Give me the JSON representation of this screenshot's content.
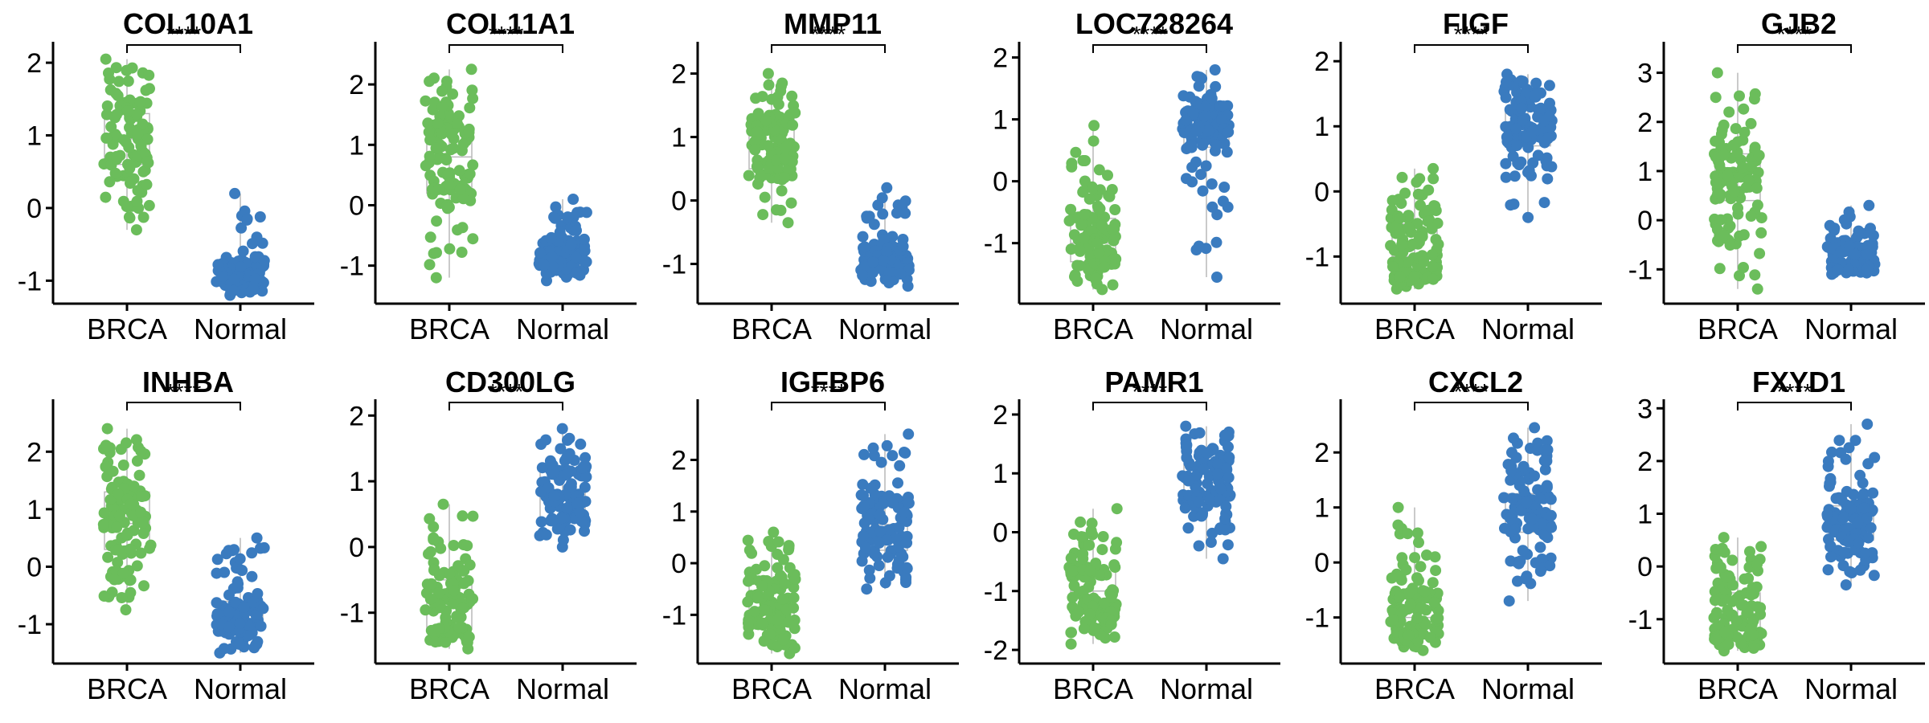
{
  "colors": {
    "BRCA": "#6bbd5b",
    "Normal": "#3a7bbf"
  },
  "chart_data": [
    {
      "type": "scatter",
      "title": "COL10A1",
      "categories": [
        "BRCA",
        "Normal"
      ],
      "annotation": "****",
      "ylim": [
        -1.25,
        2.2
      ],
      "yticks": [
        -1,
        0,
        1,
        2
      ],
      "series": [
        {
          "category": "BRCA",
          "median": 0.95,
          "q1": 0.6,
          "q3": 1.3,
          "min": -0.3,
          "max": 2.05,
          "n": 110
        },
        {
          "category": "Normal",
          "median": -0.9,
          "q1": -1.0,
          "q3": -0.75,
          "min": -1.2,
          "max": 0.2,
          "n": 110
        }
      ]
    },
    {
      "type": "scatter",
      "title": "COL11A1",
      "categories": [
        "BRCA",
        "Normal"
      ],
      "annotation": "****",
      "ylim": [
        -1.55,
        2.6
      ],
      "yticks": [
        -1,
        0,
        1,
        2
      ],
      "series": [
        {
          "category": "BRCA",
          "median": 0.8,
          "q1": 0.2,
          "q3": 1.3,
          "min": -1.2,
          "max": 2.25,
          "n": 110
        },
        {
          "category": "Normal",
          "median": -0.85,
          "q1": -1.0,
          "q3": -0.65,
          "min": -1.25,
          "max": 0.1,
          "n": 110
        }
      ]
    },
    {
      "type": "scatter",
      "title": "MMP11",
      "categories": [
        "BRCA",
        "Normal"
      ],
      "annotation": "****",
      "ylim": [
        -1.55,
        2.4
      ],
      "yticks": [
        -1,
        0,
        1,
        2
      ],
      "series": [
        {
          "category": "BRCA",
          "median": 0.9,
          "q1": 0.5,
          "q3": 1.3,
          "min": -0.35,
          "max": 2.0,
          "n": 110
        },
        {
          "category": "Normal",
          "median": -0.9,
          "q1": -1.05,
          "q3": -0.75,
          "min": -1.35,
          "max": 0.2,
          "n": 110
        }
      ]
    },
    {
      "type": "scatter",
      "title": "LOC728264",
      "categories": [
        "BRCA",
        "Normal"
      ],
      "annotation": "****",
      "ylim": [
        -1.9,
        2.15
      ],
      "yticks": [
        -1,
        0,
        1,
        2
      ],
      "series": [
        {
          "category": "BRCA",
          "median": -1.0,
          "q1": -1.3,
          "q3": -0.6,
          "min": -1.75,
          "max": 0.9,
          "n": 110
        },
        {
          "category": "Normal",
          "median": 0.9,
          "q1": 0.55,
          "q3": 1.2,
          "min": -1.55,
          "max": 1.8,
          "n": 110
        }
      ]
    },
    {
      "type": "scatter",
      "title": "FIGF",
      "categories": [
        "BRCA",
        "Normal"
      ],
      "annotation": "****",
      "ylim": [
        -1.65,
        2.2
      ],
      "yticks": [
        -1,
        0,
        1,
        2
      ],
      "series": [
        {
          "category": "BRCA",
          "median": -1.0,
          "q1": -1.3,
          "q3": -0.5,
          "min": -1.5,
          "max": 0.35,
          "n": 110
        },
        {
          "category": "Normal",
          "median": 1.0,
          "q1": 0.7,
          "q3": 1.25,
          "min": -0.4,
          "max": 1.8,
          "n": 110
        }
      ]
    },
    {
      "type": "scatter",
      "title": "GJB2",
      "categories": [
        "BRCA",
        "Normal"
      ],
      "annotation": "****",
      "ylim": [
        -1.6,
        3.5
      ],
      "yticks": [
        -1,
        0,
        1,
        2,
        3
      ],
      "series": [
        {
          "category": "BRCA",
          "median": 0.95,
          "q1": 0.4,
          "q3": 1.35,
          "min": -1.4,
          "max": 3.0,
          "n": 110
        },
        {
          "category": "Normal",
          "median": -0.8,
          "q1": -1.0,
          "q3": -0.55,
          "min": -1.1,
          "max": 0.3,
          "n": 110
        }
      ]
    },
    {
      "type": "scatter",
      "title": "INHBA",
      "categories": [
        "BRCA",
        "Normal"
      ],
      "annotation": "****",
      "ylim": [
        -1.6,
        2.8
      ],
      "yticks": [
        -1,
        0,
        1,
        2
      ],
      "series": [
        {
          "category": "BRCA",
          "median": 0.75,
          "q1": 0.3,
          "q3": 1.3,
          "min": -0.75,
          "max": 2.4,
          "n": 110
        },
        {
          "category": "Normal",
          "median": -0.85,
          "q1": -1.05,
          "q3": -0.6,
          "min": -1.5,
          "max": 0.5,
          "n": 110
        }
      ]
    },
    {
      "type": "scatter",
      "title": "CD300LG",
      "categories": [
        "BRCA",
        "Normal"
      ],
      "annotation": "****",
      "ylim": [
        -1.7,
        2.15
      ],
      "yticks": [
        -1,
        0,
        1,
        2
      ],
      "series": [
        {
          "category": "BRCA",
          "median": -0.9,
          "q1": -1.25,
          "q3": -0.5,
          "min": -1.55,
          "max": 0.65,
          "n": 110
        },
        {
          "category": "Normal",
          "median": 0.8,
          "q1": 0.4,
          "q3": 1.15,
          "min": 0.0,
          "max": 1.8,
          "n": 110
        }
      ]
    },
    {
      "type": "scatter",
      "title": "IGFBP6",
      "categories": [
        "BRCA",
        "Normal"
      ],
      "annotation": "****",
      "ylim": [
        -1.85,
        3.05
      ],
      "yticks": [
        -1,
        0,
        1,
        2
      ],
      "series": [
        {
          "category": "BRCA",
          "median": -0.75,
          "q1": -1.15,
          "q3": -0.35,
          "min": -1.75,
          "max": 0.6,
          "n": 110
        },
        {
          "category": "Normal",
          "median": 0.75,
          "q1": 0.25,
          "q3": 1.15,
          "min": -0.5,
          "max": 2.5,
          "n": 110
        }
      ]
    },
    {
      "type": "scatter",
      "title": "PAMR1",
      "categories": [
        "BRCA",
        "Normal"
      ],
      "annotation": "****",
      "ylim": [
        -2.15,
        2.15
      ],
      "yticks": [
        -2,
        -1,
        0,
        1,
        2
      ],
      "series": [
        {
          "category": "BRCA",
          "median": -1.0,
          "q1": -1.35,
          "q3": -0.6,
          "min": -1.9,
          "max": 0.4,
          "n": 110
        },
        {
          "category": "Normal",
          "median": 0.85,
          "q1": 0.55,
          "q3": 1.15,
          "min": -0.45,
          "max": 1.8,
          "n": 110
        }
      ]
    },
    {
      "type": "scatter",
      "title": "CXCL2",
      "categories": [
        "BRCA",
        "Normal"
      ],
      "annotation": "****",
      "ylim": [
        -1.75,
        2.85
      ],
      "yticks": [
        -1,
        0,
        1,
        2
      ],
      "series": [
        {
          "category": "BRCA",
          "median": -1.0,
          "q1": -1.3,
          "q3": -0.55,
          "min": -1.6,
          "max": 1.0,
          "n": 110
        },
        {
          "category": "Normal",
          "median": 0.9,
          "q1": 0.55,
          "q3": 1.25,
          "min": -0.7,
          "max": 2.45,
          "n": 110
        }
      ]
    },
    {
      "type": "scatter",
      "title": "FXYD1",
      "categories": [
        "BRCA",
        "Normal"
      ],
      "annotation": "****",
      "ylim": [
        -1.75,
        3.05
      ],
      "yticks": [
        -1,
        0,
        1,
        2,
        3
      ],
      "series": [
        {
          "category": "BRCA",
          "median": -1.0,
          "q1": -1.3,
          "q3": -0.5,
          "min": -1.6,
          "max": 0.55,
          "n": 110
        },
        {
          "category": "Normal",
          "median": 0.8,
          "q1": 0.5,
          "q3": 1.15,
          "min": -0.35,
          "max": 2.7,
          "n": 110
        }
      ]
    }
  ]
}
